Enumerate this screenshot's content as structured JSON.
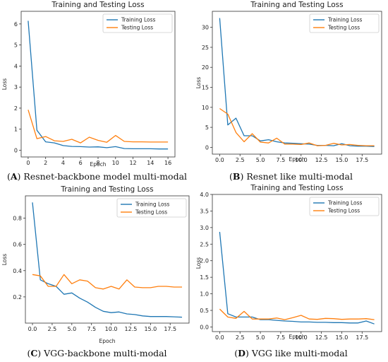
{
  "colors": {
    "training": "#1f77b4",
    "testing": "#ff7f0e"
  },
  "panels": [
    {
      "id": "A",
      "caption_letter": "A",
      "caption_text": "Resnet-backbone model multi-modal"
    },
    {
      "id": "B",
      "caption_letter": "B",
      "caption_text": "Resnet like multi-modal"
    },
    {
      "id": "C",
      "caption_letter": "C",
      "caption_text": "VGG-backbone multi-modal"
    },
    {
      "id": "D",
      "caption_letter": "D",
      "caption_text": "VGG like multi-modal"
    }
  ],
  "chart_data": [
    {
      "type": "line",
      "title": "Training and Testing Loss",
      "xlabel": "Epoch",
      "ylabel": "Loss",
      "xlim": [
        -0.8,
        16.8
      ],
      "ylim": [
        -0.32,
        6.6
      ],
      "xticks": [
        0,
        2,
        4,
        6,
        8,
        10,
        12,
        14,
        16
      ],
      "yticks": [
        0,
        1,
        2,
        3,
        4,
        5,
        6
      ],
      "legend": "top-right",
      "series": [
        {
          "name": "Training Loss",
          "x": [
            0,
            1,
            2,
            3,
            4,
            5,
            6,
            7,
            8,
            9,
            10,
            11,
            12,
            13,
            14,
            15,
            16
          ],
          "values": [
            6.15,
            0.95,
            0.4,
            0.35,
            0.22,
            0.18,
            0.17,
            0.15,
            0.16,
            0.12,
            0.17,
            0.08,
            0.07,
            0.07,
            0.07,
            0.06,
            0.06
          ]
        },
        {
          "name": "Testing Loss",
          "x": [
            0,
            1,
            2,
            3,
            4,
            5,
            6,
            7,
            8,
            9,
            10,
            11,
            12,
            13,
            14,
            15,
            16
          ],
          "values": [
            1.92,
            0.55,
            0.65,
            0.45,
            0.42,
            0.52,
            0.35,
            0.62,
            0.47,
            0.38,
            0.7,
            0.42,
            0.4,
            0.4,
            0.39,
            0.39,
            0.39
          ]
        }
      ]
    },
    {
      "type": "line",
      "title": "Training and Testing Loss",
      "xlabel": "Epoch",
      "ylabel": "Loss",
      "xlim": [
        -0.9,
        19.9
      ],
      "ylim": [
        -1.7,
        34.0
      ],
      "xticks": [
        0,
        2.5,
        5.0,
        7.5,
        10.0,
        12.5,
        15.0,
        17.5
      ],
      "xticklabels": [
        "0.0",
        "2.5",
        "5.0",
        "7.5",
        "10.0",
        "12.5",
        "15.0",
        "17.5"
      ],
      "yticks": [
        0,
        5,
        10,
        15,
        20,
        25,
        30
      ],
      "legend": "top-right",
      "series": [
        {
          "name": "Training Loss",
          "x": [
            0,
            1,
            2,
            3,
            4,
            5,
            6,
            7,
            8,
            9,
            10,
            11,
            12,
            13,
            14,
            15,
            16,
            17,
            18,
            19
          ],
          "values": [
            32.3,
            5.6,
            7.3,
            2.9,
            2.9,
            1.6,
            1.9,
            1.4,
            1.1,
            1.0,
            0.9,
            0.8,
            0.5,
            0.5,
            0.4,
            0.9,
            0.4,
            0.3,
            0.3,
            0.2
          ]
        },
        {
          "name": "Testing Loss",
          "x": [
            0,
            1,
            2,
            3,
            4,
            5,
            6,
            7,
            8,
            9,
            10,
            11,
            12,
            13,
            14,
            15,
            16,
            17,
            18,
            19
          ],
          "values": [
            9.7,
            8.3,
            3.7,
            1.4,
            3.4,
            1.3,
            1.1,
            2.3,
            0.8,
            0.8,
            0.7,
            1.1,
            0.4,
            0.5,
            1.0,
            0.6,
            0.7,
            0.5,
            0.4,
            0.4
          ]
        }
      ]
    },
    {
      "type": "line",
      "title": "Training and Testing Loss",
      "xlabel": "Epoch",
      "ylabel": "Loss",
      "xlim": [
        -0.9,
        19.9
      ],
      "ylim": [
        0.0,
        0.97
      ],
      "xticks": [
        0,
        2.5,
        5.0,
        7.5,
        10.0,
        12.5,
        15.0,
        17.5
      ],
      "xticklabels": [
        "0.0",
        "2.5",
        "5.0",
        "7.5",
        "10.0",
        "12.5",
        "15.0",
        "17.5"
      ],
      "yticks": [
        0.2,
        0.4,
        0.6,
        0.8
      ],
      "legend": "top-right",
      "series": [
        {
          "name": "Training Loss",
          "x": [
            0,
            1,
            2,
            3,
            4,
            5,
            6,
            7,
            8,
            9,
            10,
            11,
            12,
            13,
            14,
            15,
            16,
            17,
            18,
            19
          ],
          "values": [
            0.92,
            0.33,
            0.3,
            0.28,
            0.22,
            0.23,
            0.19,
            0.16,
            0.12,
            0.09,
            0.08,
            0.085,
            0.07,
            0.065,
            0.055,
            0.05,
            0.05,
            0.05,
            0.048,
            0.045
          ]
        },
        {
          "name": "Testing Loss",
          "x": [
            0,
            1,
            2,
            3,
            4,
            5,
            6,
            7,
            8,
            9,
            10,
            11,
            12,
            13,
            14,
            15,
            16,
            17,
            18,
            19
          ],
          "values": [
            0.37,
            0.36,
            0.28,
            0.28,
            0.37,
            0.3,
            0.33,
            0.32,
            0.27,
            0.26,
            0.28,
            0.26,
            0.33,
            0.275,
            0.27,
            0.27,
            0.28,
            0.28,
            0.275,
            0.275
          ]
        }
      ]
    },
    {
      "type": "line",
      "title": "Training and Testing Loss",
      "xlabel": "Epoch",
      "ylabel": "Loss",
      "xlim": [
        -0.9,
        19.9
      ],
      "ylim": [
        -0.14,
        4.0
      ],
      "xticks": [
        0,
        2.5,
        5.0,
        7.5,
        10.0,
        12.5,
        15.0,
        17.5
      ],
      "xticklabels": [
        "0.0",
        "2.5",
        "5.0",
        "7.5",
        "10.0",
        "12.5",
        "15.0",
        "17.5"
      ],
      "yticks": [
        0.0,
        0.5,
        1.0,
        1.5,
        2.0,
        2.5,
        3.0,
        3.5,
        4.0
      ],
      "yticklabels": [
        "0.0",
        "0.5",
        "1.0",
        "1.5",
        "2.0",
        "2.5",
        "3.0",
        "3.5",
        "4.0"
      ],
      "legend": "top-right",
      "series": [
        {
          "name": "Training Loss",
          "x": [
            0,
            1,
            2,
            3,
            4,
            5,
            6,
            7,
            8,
            9,
            10,
            11,
            12,
            13,
            14,
            15,
            16,
            17,
            18,
            19
          ],
          "values": [
            2.87,
            0.4,
            0.3,
            0.3,
            0.3,
            0.22,
            0.22,
            0.2,
            0.18,
            0.17,
            0.15,
            0.15,
            0.14,
            0.14,
            0.13,
            0.13,
            0.12,
            0.12,
            0.18,
            0.09
          ]
        },
        {
          "name": "Testing Loss",
          "x": [
            0,
            1,
            2,
            3,
            4,
            5,
            6,
            7,
            8,
            9,
            10,
            11,
            12,
            13,
            14,
            15,
            16,
            17,
            18,
            19
          ],
          "values": [
            0.54,
            0.3,
            0.26,
            0.47,
            0.24,
            0.24,
            0.24,
            0.27,
            0.22,
            0.28,
            0.35,
            0.24,
            0.23,
            0.26,
            0.25,
            0.23,
            0.24,
            0.24,
            0.25,
            0.22
          ]
        }
      ]
    }
  ]
}
